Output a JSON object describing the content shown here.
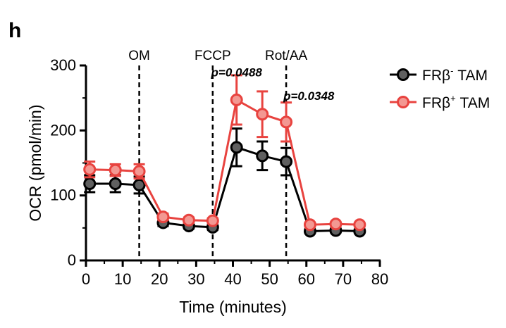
{
  "panel_label": "h",
  "chart_data": {
    "type": "line",
    "xlabel": "Time (minutes)",
    "ylabel": "OCR (pmol/min)",
    "xlim": [
      0,
      80
    ],
    "ylim": [
      0,
      300
    ],
    "xticks": [
      0,
      10,
      20,
      30,
      40,
      50,
      60,
      70,
      80
    ],
    "yticks": [
      0,
      100,
      200,
      300
    ],
    "grid": false,
    "legend_position": "top-right",
    "event_lines": [
      {
        "x": 14.5,
        "label": "OM"
      },
      {
        "x": 34.5,
        "label": "FCCP"
      },
      {
        "x": 54.5,
        "label": "Rot/AA"
      }
    ],
    "annotations": [
      {
        "text": "p=0.0488",
        "x": 41,
        "y": 283
      },
      {
        "text": "p=0.0348",
        "x": 54.5,
        "y": 247
      }
    ],
    "series": [
      {
        "name": "FRβ⁻ TAM",
        "name_base": "FRβ",
        "name_sup": "-",
        "name_suffix": " TAM",
        "color": "#000000",
        "marker_fill": "#606060",
        "x": [
          1,
          8,
          14.5,
          21,
          28,
          34.5,
          41,
          48,
          54.5,
          61,
          68,
          74.5
        ],
        "y": [
          118,
          118,
          116,
          58,
          53,
          51,
          174,
          161,
          152,
          45,
          46,
          45
        ],
        "err": [
          13,
          13,
          13,
          5,
          4,
          4,
          29,
          22,
          21,
          3,
          3,
          3
        ]
      },
      {
        "name": "FRβ⁺ TAM",
        "name_base": "FRβ",
        "name_sup": "+",
        "name_suffix": " TAM",
        "color": "#e8433f",
        "marker_fill": "#f39892",
        "x": [
          1,
          8,
          14.5,
          21,
          28,
          34.5,
          41,
          48,
          54.5,
          61,
          68,
          74.5
        ],
        "y": [
          140,
          139,
          137,
          67,
          62,
          61,
          247,
          225,
          213,
          55,
          56,
          55
        ],
        "err": [
          12,
          9,
          11,
          5,
          4,
          4,
          38,
          35,
          30,
          3,
          3,
          3
        ]
      }
    ]
  }
}
